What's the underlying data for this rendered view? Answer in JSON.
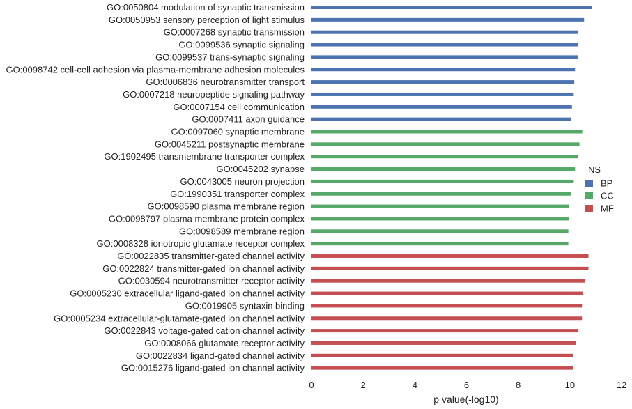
{
  "chart_data": {
    "type": "bar",
    "orientation": "horizontal",
    "xlabel": "p value(-log10)",
    "xlim": [
      0,
      12
    ],
    "xticks": [
      "0",
      "2",
      "4",
      "6",
      "8",
      "10",
      "12"
    ],
    "grid": false,
    "legend": {
      "title": "NS",
      "position": "right",
      "entries": [
        {
          "name": "BP",
          "color": "#4c72b0"
        },
        {
          "name": "CC",
          "color": "#55a868"
        },
        {
          "name": "MF",
          "color": "#c44e52"
        }
      ]
    },
    "bars": [
      {
        "label": "GO:0050804 modulation of synaptic transmission",
        "value": 10.85,
        "group": "BP"
      },
      {
        "label": "GO:0050953 sensory perception of light stimulus",
        "value": 10.55,
        "group": "BP"
      },
      {
        "label": "GO:0007268 synaptic transmission",
        "value": 10.3,
        "group": "BP"
      },
      {
        "label": "GO:0099536 synaptic signaling",
        "value": 10.3,
        "group": "BP"
      },
      {
        "label": "GO:0099537 trans-synaptic signaling",
        "value": 10.3,
        "group": "BP"
      },
      {
        "label": "GO:0098742 cell-cell adhesion via plasma-membrane adhesion molecules",
        "value": 10.2,
        "group": "BP"
      },
      {
        "label": "GO:0006836 neurotransmitter transport",
        "value": 10.17,
        "group": "BP"
      },
      {
        "label": "GO:0007218 neuropeptide signaling pathway",
        "value": 10.15,
        "group": "BP"
      },
      {
        "label": "GO:0007154 cell communication",
        "value": 10.08,
        "group": "BP"
      },
      {
        "label": "GO:0007411 axon guidance",
        "value": 10.05,
        "group": "BP"
      },
      {
        "label": "GO:0097060 synaptic membrane",
        "value": 10.48,
        "group": "CC"
      },
      {
        "label": "GO:0045211 postsynaptic membrane",
        "value": 10.37,
        "group": "CC"
      },
      {
        "label": "GO:1902495 transmembrane transporter complex",
        "value": 10.32,
        "group": "CC"
      },
      {
        "label": "GO:0045202 synapse",
        "value": 10.2,
        "group": "CC"
      },
      {
        "label": "GO:0043005 neuron projection",
        "value": 10.15,
        "group": "CC"
      },
      {
        "label": "GO:1990351 transporter complex",
        "value": 10.05,
        "group": "CC"
      },
      {
        "label": "GO:0098590 plasma membrane region",
        "value": 9.98,
        "group": "CC"
      },
      {
        "label": "GO:0098797 plasma membrane protein complex",
        "value": 9.96,
        "group": "CC"
      },
      {
        "label": "GO:0098589 membrane region",
        "value": 9.94,
        "group": "CC"
      },
      {
        "label": "GO:0008328 ionotropic glutamate receptor complex",
        "value": 9.94,
        "group": "CC"
      },
      {
        "label": "GO:0022835 transmitter-gated channel activity",
        "value": 10.72,
        "group": "MF"
      },
      {
        "label": "GO:0022824 transmitter-gated ion channel activity",
        "value": 10.72,
        "group": "MF"
      },
      {
        "label": "GO:0030594 neurotransmitter receptor activity",
        "value": 10.6,
        "group": "MF"
      },
      {
        "label": "GO:0005230 extracellular ligand-gated ion channel activity",
        "value": 10.52,
        "group": "MF"
      },
      {
        "label": "GO:0019905 syntaxin binding",
        "value": 10.47,
        "group": "MF"
      },
      {
        "label": "GO:0005234 extracellular-glutamate-gated ion channel activity",
        "value": 10.47,
        "group": "MF"
      },
      {
        "label": "GO:0022843 voltage-gated cation channel activity",
        "value": 10.33,
        "group": "MF"
      },
      {
        "label": "GO:0008066 glutamate receptor activity",
        "value": 10.22,
        "group": "MF"
      },
      {
        "label": "GO:0022834 ligand-gated channel activity",
        "value": 10.12,
        "group": "MF"
      },
      {
        "label": "GO:0015276 ligand-gated ion channel activity",
        "value": 10.12,
        "group": "MF"
      }
    ]
  }
}
